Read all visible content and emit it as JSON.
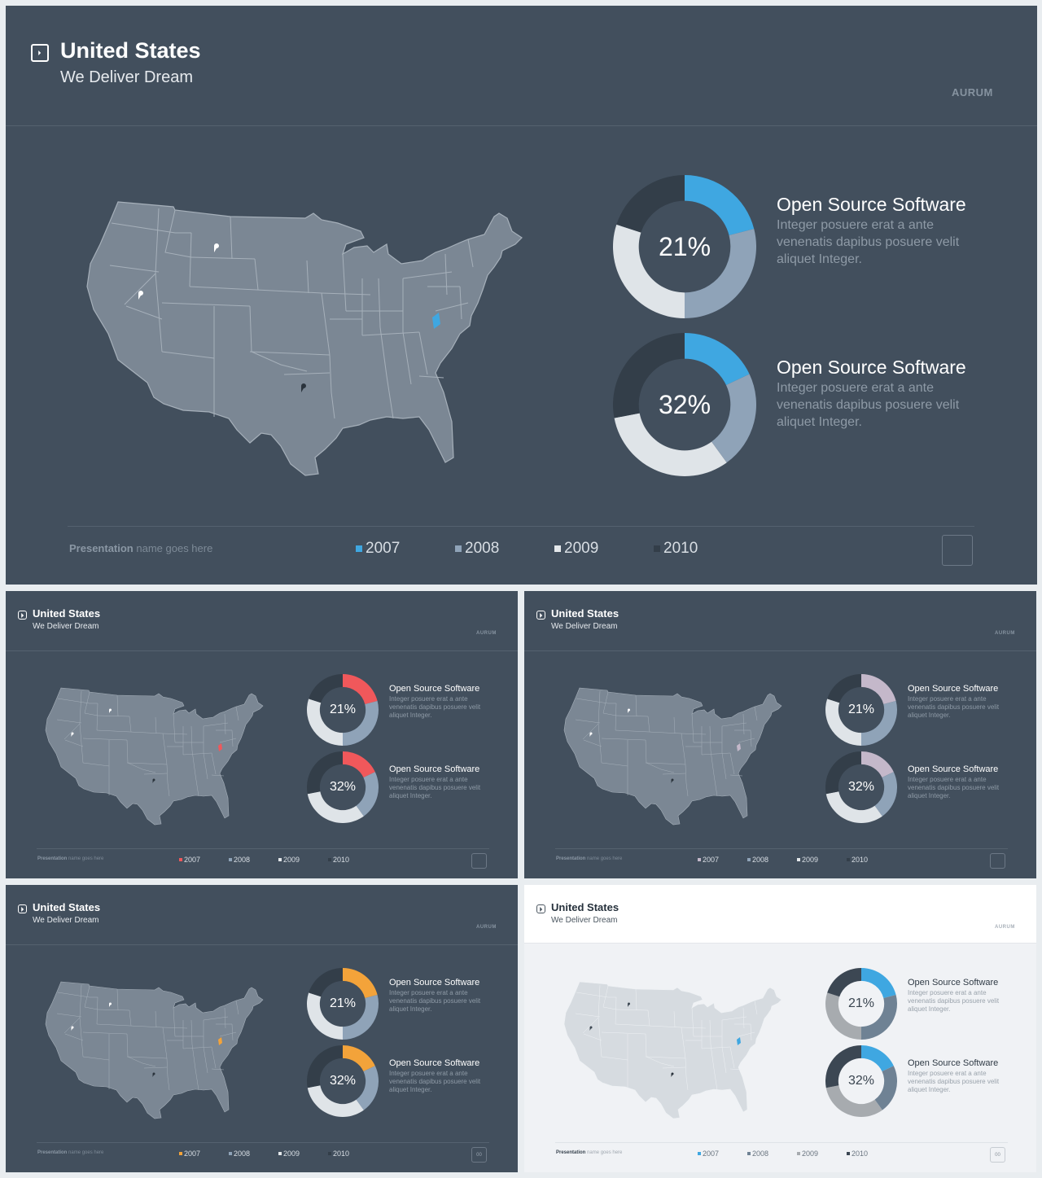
{
  "title": "United States",
  "subtitle": "We Deliver Dream",
  "brand": "AURUM",
  "charts": [
    {
      "percent": "21%",
      "title": "Open Source Software",
      "description": "Integer posuere erat a ante venenatis dapibus posuere velit aliquet Integer."
    },
    {
      "percent": "32%",
      "title": "Open Source Software",
      "description": "Integer posuere erat a ante venenatis dapibus posuere velit aliquet Integer."
    }
  ],
  "footer": {
    "presentation_bold": "Presentation",
    "presentation_rest": "name goes here",
    "page_number": "00"
  },
  "legend": [
    "2007",
    "2008",
    "2009",
    "2010"
  ],
  "themes": [
    {
      "name": "blue",
      "accent": "#3fa7e1"
    },
    {
      "name": "red",
      "accent": "#f0585b"
    },
    {
      "name": "lilac",
      "accent": "#c4b8ca"
    },
    {
      "name": "orange",
      "accent": "#f3a33a"
    },
    {
      "name": "light",
      "accent": "#3fa7e1"
    }
  ],
  "chart_data": [
    {
      "type": "pie",
      "variant": "donut",
      "center_label": "21%",
      "categories": [
        "2007",
        "2008",
        "2009",
        "2010"
      ],
      "values": [
        21,
        29,
        30,
        20
      ]
    },
    {
      "type": "pie",
      "variant": "donut",
      "center_label": "32%",
      "categories": [
        "2007",
        "2008",
        "2009",
        "2010"
      ],
      "values": [
        18,
        22,
        32,
        28
      ]
    }
  ]
}
